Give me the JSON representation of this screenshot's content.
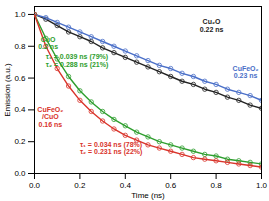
{
  "chart_data": {
    "type": "line",
    "x_label": "Time (ns)",
    "y_label": "Emission (a.u.)",
    "x": [
      0,
      0.05,
      0.1,
      0.15,
      0.2,
      0.25,
      0.3,
      0.35,
      0.4,
      0.45,
      0.5,
      0.55,
      0.6,
      0.65,
      0.7,
      0.75,
      0.8,
      0.85,
      0.9,
      0.95,
      1.0
    ],
    "xlim": [
      0,
      1.0
    ],
    "xticks": [
      {
        "value": 0,
        "label": "0.0"
      },
      0.2,
      0.4,
      0.6,
      0.8,
      {
        "value": 1,
        "label": "1.0"
      }
    ],
    "ylim": [
      0,
      1.05
    ],
    "yticks": [
      {
        "value": 0,
        "label": "0.0"
      },
      0.2,
      0.4,
      0.6,
      0.8,
      {
        "value": 1,
        "label": "1.0"
      }
    ],
    "grid": false,
    "series": [
      {
        "name": "Cu₂O",
        "color": "#222222",
        "marker": "circle",
        "line_style": "solid",
        "values": [
          1.0,
          0.97,
          0.93,
          0.89,
          0.86,
          0.83,
          0.79,
          0.76,
          0.73,
          0.7,
          0.67,
          0.64,
          0.61,
          0.58,
          0.56,
          0.53,
          0.51,
          0.48,
          0.46,
          0.43,
          0.41
        ]
      },
      {
        "name": "CuFeO₂",
        "color": "#4a6fc8",
        "marker": "circle",
        "line_style": "solid",
        "values": [
          1.0,
          0.98,
          0.95,
          0.92,
          0.89,
          0.86,
          0.83,
          0.8,
          0.77,
          0.74,
          0.71,
          0.68,
          0.66,
          0.63,
          0.61,
          0.58,
          0.56,
          0.53,
          0.51,
          0.49,
          0.46
        ]
      },
      {
        "name": "CuO",
        "color": "#2e9e2e",
        "marker": "circle",
        "line_style": "solid",
        "values": [
          1.0,
          0.85,
          0.72,
          0.61,
          0.52,
          0.45,
          0.39,
          0.34,
          0.3,
          0.26,
          0.23,
          0.2,
          0.18,
          0.16,
          0.14,
          0.12,
          0.11,
          0.09,
          0.08,
          0.07,
          0.06
        ]
      },
      {
        "name": "CuFeO₂/CuO",
        "color": "#d9342b",
        "marker": "circle",
        "line_style": "solid",
        "values": [
          1.0,
          0.8,
          0.66,
          0.55,
          0.46,
          0.39,
          0.33,
          0.28,
          0.24,
          0.21,
          0.18,
          0.16,
          0.14,
          0.12,
          0.1,
          0.09,
          0.08,
          0.07,
          0.06,
          0.05,
          0.04
        ]
      }
    ],
    "annotations": [
      {
        "text": "Cu₂O\n0.22 ns",
        "color": "#222222"
      },
      {
        "text": "CuFeO₂\n0.23 ns",
        "color": "#4a6fc8"
      },
      {
        "text": "CuO\n0.2 ns",
        "color": "#2e9e2e"
      },
      {
        "text": "τ₁ = 0.039 ns (79%)\nτ₂ = 0.288 ns (21%)",
        "color": "#2e9e2e"
      },
      {
        "text": "CuFeO₂\n/CuO\n0.16 ns",
        "color": "#d9342b"
      },
      {
        "text": "τ₁ = 0.034 ns (78%)\nτ₂ = 0.231 ns (22%)",
        "color": "#d9342b"
      }
    ]
  }
}
